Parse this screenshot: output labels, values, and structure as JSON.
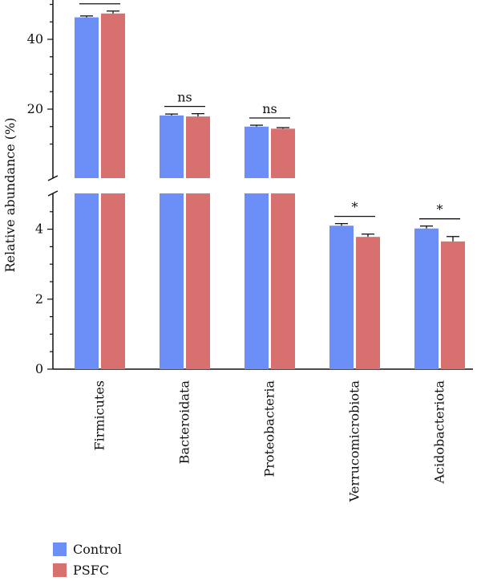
{
  "chart_data": {
    "type": "bar",
    "ylabel": "Relative abundance (%)",
    "categories": [
      "Firmicutes",
      "Bacteroidata",
      "Proteobacteria",
      "Verrucomicrobiota",
      "Acidobacteriota"
    ],
    "series": [
      {
        "name": "Control",
        "color": "#6b8ef7",
        "values": [
          46.3,
          18.2,
          15.0,
          4.1,
          4.02
        ],
        "errors": [
          0.4,
          0.4,
          0.4,
          0.06,
          0.07
        ]
      },
      {
        "name": "PSFC",
        "color": "#d97070",
        "values": [
          47.4,
          17.9,
          14.4,
          3.78,
          3.65
        ],
        "errors": [
          0.7,
          0.8,
          0.3,
          0.08,
          0.14
        ]
      }
    ],
    "significance": [
      "ns",
      "ns",
      "ns",
      "*",
      "*"
    ],
    "axis": {
      "broken": true,
      "lower_range": [
        0,
        5
      ],
      "upper_range": [
        10,
        60
      ],
      "lower_ticks": [
        0,
        2,
        4
      ],
      "upper_ticks": [
        20,
        40,
        60
      ]
    },
    "legend_position": "bottom-left",
    "grid": false
  }
}
